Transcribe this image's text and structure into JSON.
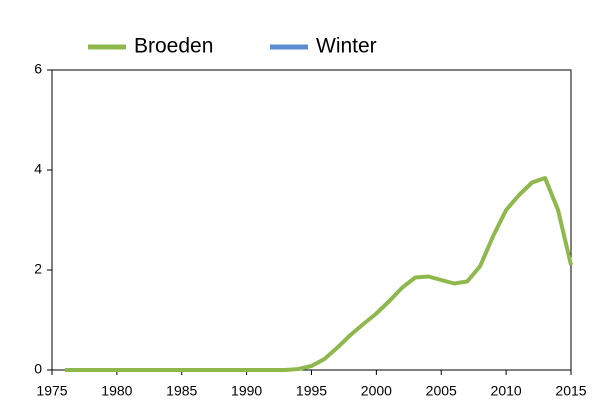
{
  "chart_data": {
    "type": "line",
    "x": [
      1976,
      1977,
      1978,
      1979,
      1980,
      1981,
      1982,
      1983,
      1984,
      1985,
      1986,
      1987,
      1988,
      1989,
      1990,
      1991,
      1992,
      1993,
      1994,
      1995,
      1996,
      1997,
      1998,
      1999,
      2000,
      2001,
      2002,
      2003,
      2004,
      2005,
      2006,
      2007,
      2008,
      2009,
      2010,
      2011,
      2012,
      2013,
      2014,
      2015
    ],
    "series": [
      {
        "name": "Broeden",
        "color": "#8fb84c",
        "values": [
          0,
          0,
          0,
          0,
          0,
          0,
          0,
          0,
          0,
          0,
          0,
          0,
          0,
          0,
          0,
          0,
          0,
          0,
          0.02,
          0.08,
          0.22,
          0.45,
          0.7,
          0.92,
          1.13,
          1.38,
          1.65,
          1.85,
          1.87,
          1.8,
          1.73,
          1.77,
          2.08,
          2.68,
          3.2,
          3.5,
          3.75,
          3.84,
          3.2,
          2.1
        ]
      },
      {
        "name": "Winter",
        "color": "#5b8bd0",
        "values": [
          null,
          null,
          null,
          null,
          null,
          null,
          null,
          null,
          null,
          null,
          null,
          null,
          null,
          null,
          null,
          null,
          null,
          null,
          null,
          null,
          null,
          null,
          null,
          null,
          null,
          null,
          null,
          null,
          null,
          null,
          null,
          null,
          null,
          null,
          null,
          null,
          null,
          null,
          null,
          null
        ]
      }
    ],
    "xlim": [
      1975,
      2015
    ],
    "xticks": [
      1975,
      1980,
      1985,
      1990,
      1995,
      2000,
      2005,
      2010,
      2015
    ],
    "ylim": [
      0,
      6
    ],
    "yticks": [
      0,
      2,
      4,
      6
    ]
  }
}
